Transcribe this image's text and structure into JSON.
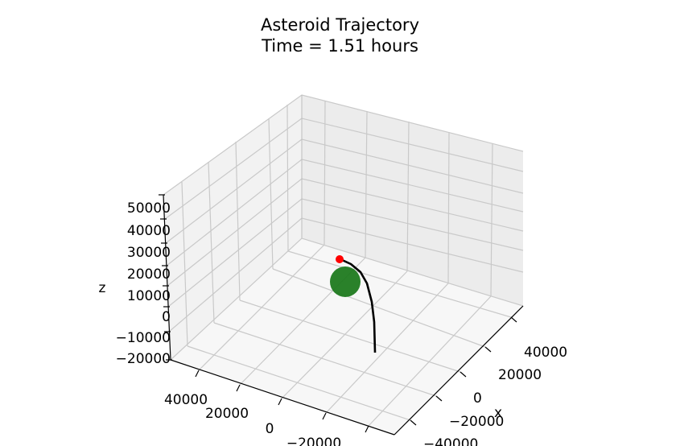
{
  "chart_data": {
    "type": "3d-line",
    "title": "Asteroid Trajectory",
    "subtitle": "Time = 1.51 hours",
    "xlabel": "x",
    "ylabel": "",
    "zlabel": "z",
    "x_ticks": [
      "−40000",
      "−20000",
      "0",
      "20000",
      "40000"
    ],
    "y_ticks": [
      "−20000",
      "0",
      "20000",
      "40000"
    ],
    "z_ticks": [
      "−20000",
      "−10000",
      "0",
      "10000",
      "20000",
      "30000",
      "40000",
      "50000"
    ],
    "series": [
      {
        "type": "line",
        "color": "#000000",
        "points": [
          {
            "x": 20000,
            "y": 20000,
            "z": -20000
          },
          {
            "x": 19000,
            "y": 19000,
            "z": -10000
          },
          {
            "x": 17000,
            "y": 17000,
            "z": -5000
          },
          {
            "x": 14000,
            "y": 14000,
            "z": 0
          },
          {
            "x": 10000,
            "y": 10000,
            "z": 3500
          },
          {
            "x": 6000,
            "y": 6000,
            "z": 5500
          },
          {
            "x": 2000,
            "y": 2000,
            "z": 6500
          }
        ]
      },
      {
        "type": "marker",
        "color": "#ff0000",
        "point": {
          "x": 2000,
          "y": 2000,
          "z": 7000
        }
      },
      {
        "type": "sphere",
        "color": "#1f7a1f",
        "center": {
          "x": 0,
          "y": 0,
          "z": 0
        }
      }
    ],
    "grid": true
  }
}
